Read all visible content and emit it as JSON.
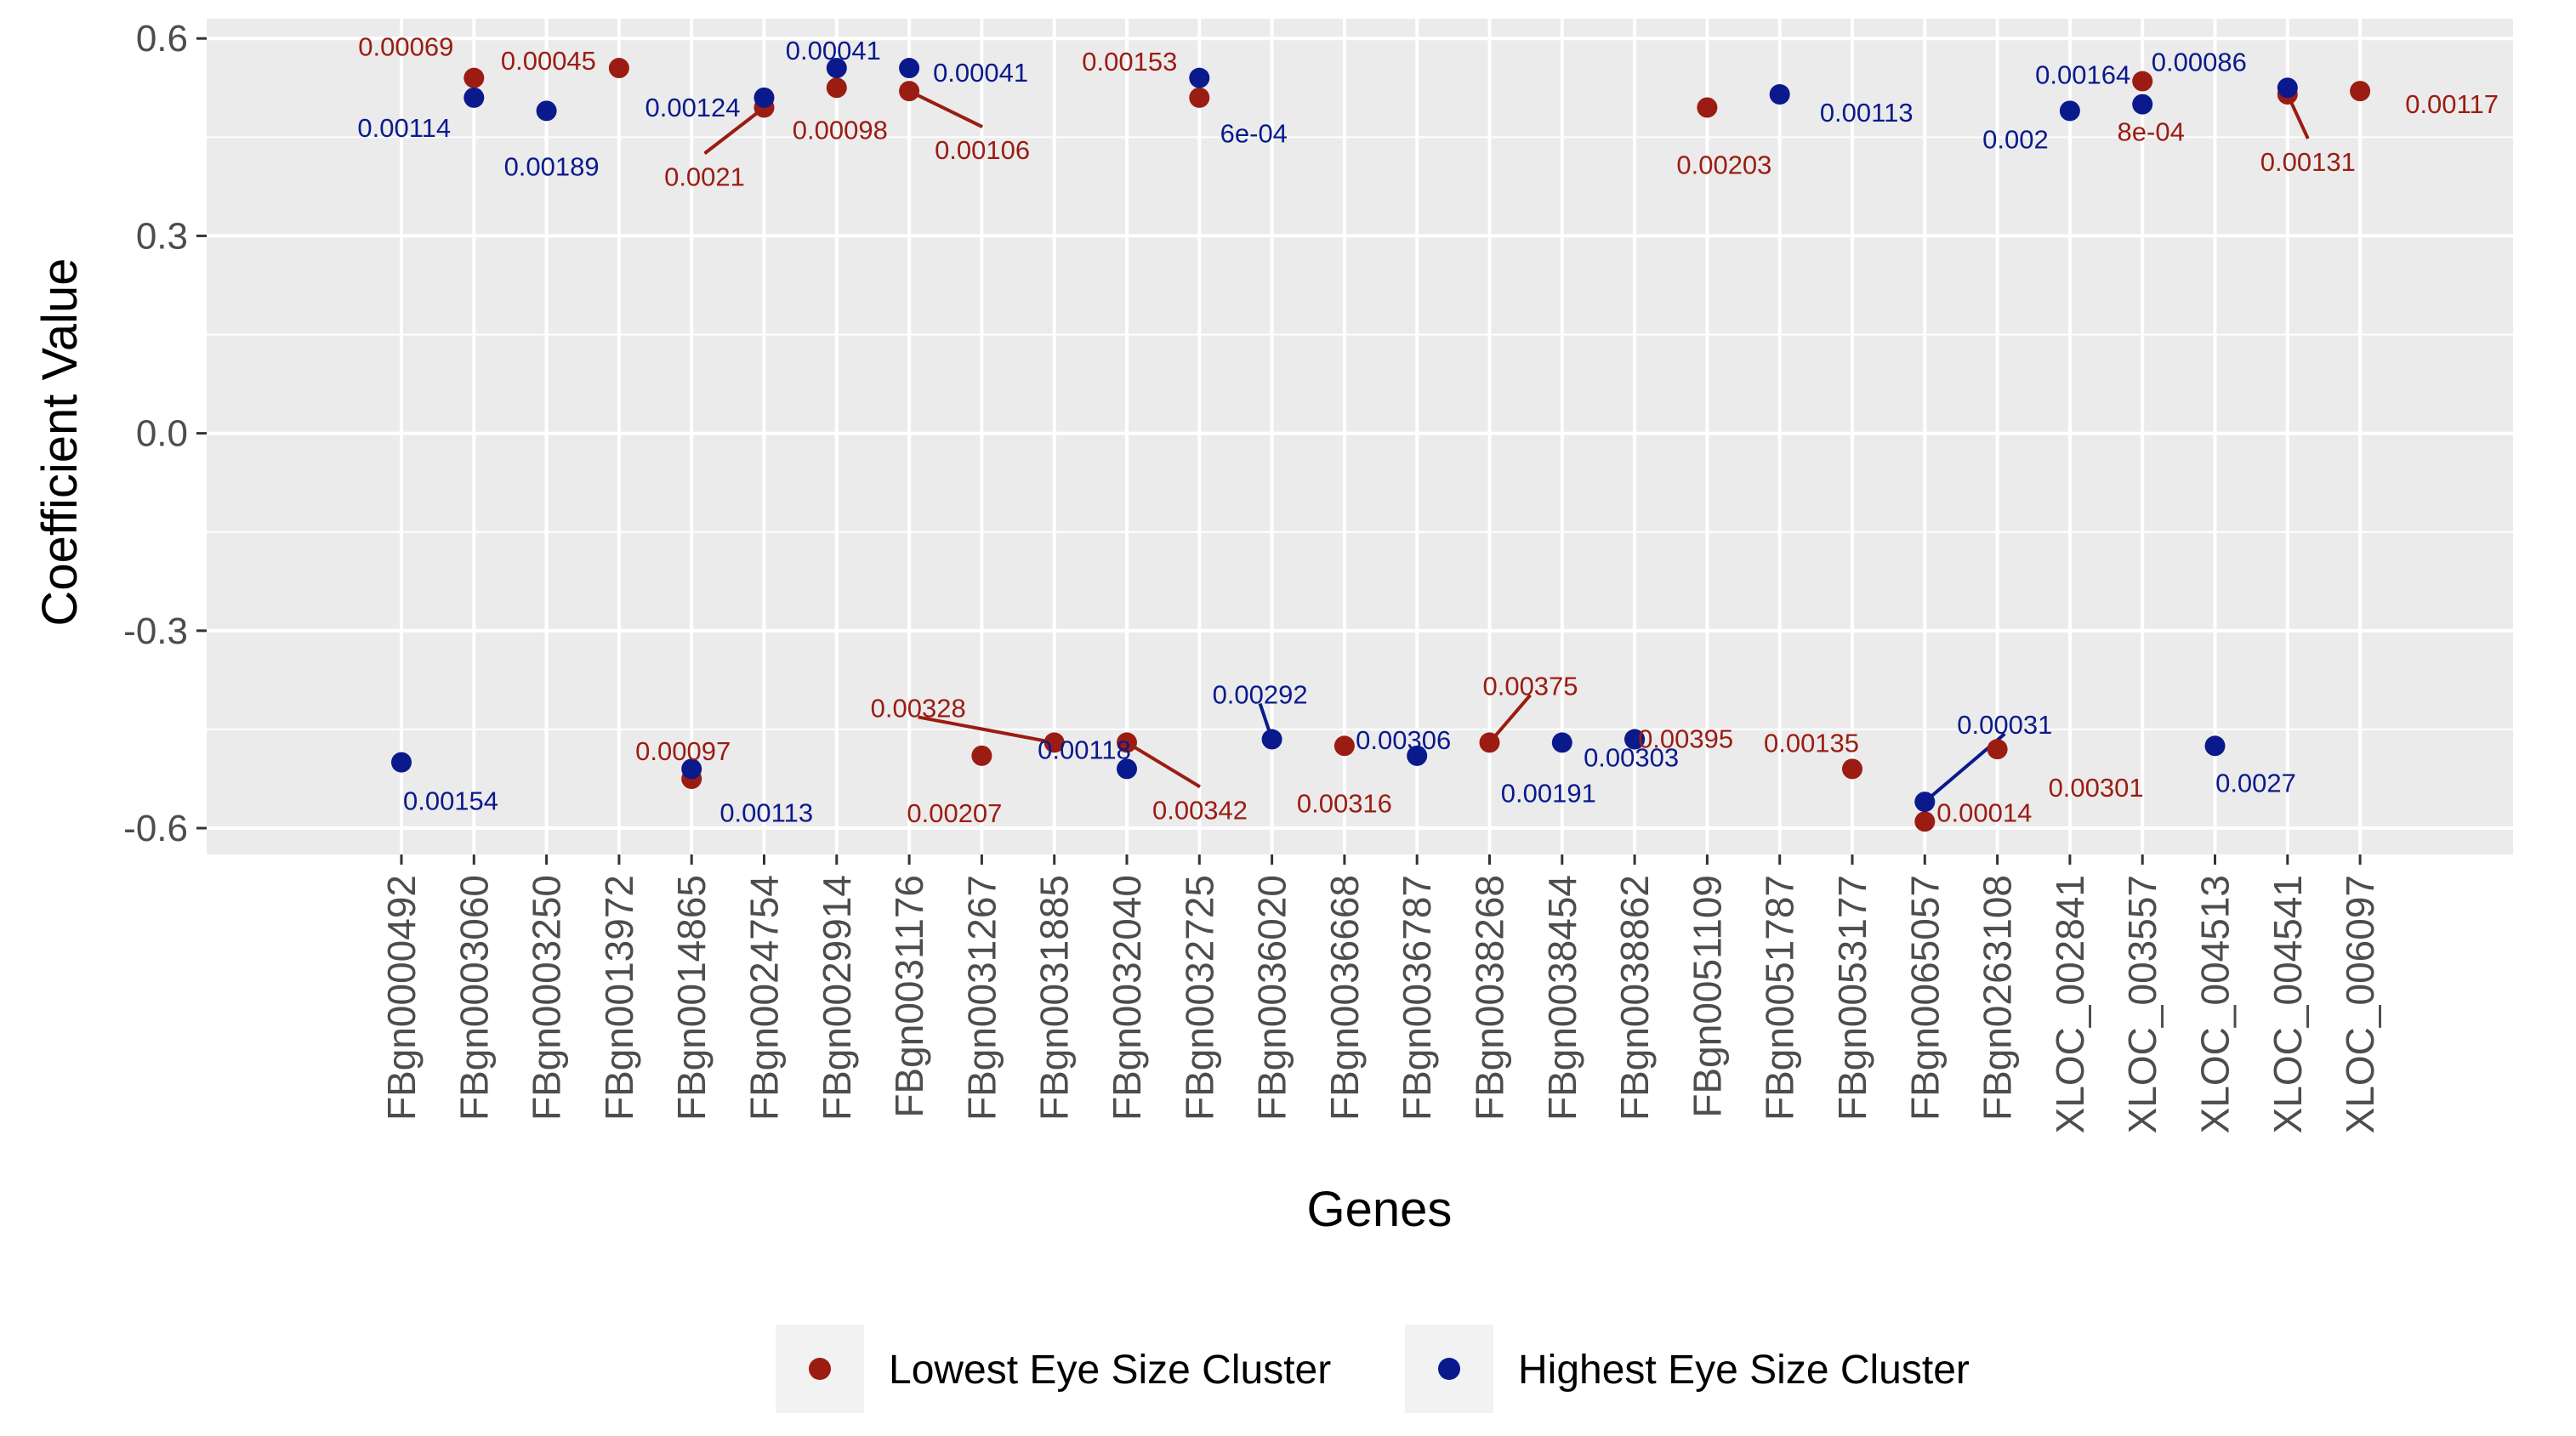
{
  "chart_data": {
    "type": "scatter",
    "title": "",
    "xlabel": "Genes",
    "ylabel": "Coefficient Value",
    "ylim": [
      -0.64,
      0.63
    ],
    "y_ticks": [
      "0.6",
      "0.3",
      "0.0",
      "-0.3",
      "-0.6"
    ],
    "y_tick_values": [
      0.6,
      0.3,
      0.0,
      -0.3,
      -0.6
    ],
    "grid": true,
    "legend_position": "bottom",
    "colors": {
      "lowest": "#9b1c12",
      "highest": "#0a1a8c",
      "panel": "#ebebeb",
      "grid": "#ffffff"
    },
    "categories": [
      "FBgn0000492",
      "FBgn0003060",
      "FBgn0003250",
      "FBgn0013972",
      "FBgn0014865",
      "FBgn0024754",
      "FBgn0029914",
      "FBgn0031176",
      "FBgn0031267",
      "FBgn0031885",
      "FBgn0032040",
      "FBgn0032725",
      "FBgn0036020",
      "FBgn0036668",
      "FBgn0036787",
      "FBgn0038268",
      "FBgn0038454",
      "FBgn0038862",
      "FBgn0051109",
      "FBgn0051787",
      "FBgn0053177",
      "FBgn0065057",
      "FBgn0263108",
      "XLOC_002841",
      "XLOC_003557",
      "XLOC_004513",
      "XLOC_004541",
      "XLOC_006097"
    ],
    "series": [
      {
        "name": "Lowest Eye Size Cluster",
        "color_key": "lowest",
        "points": [
          {
            "category": "FBgn0003060",
            "value": 0.54,
            "label": "0.00069"
          },
          {
            "category": "FBgn0013972",
            "value": 0.555,
            "label": "0.00045"
          },
          {
            "category": "FBgn0014865",
            "value": -0.525,
            "label": "0.00097"
          },
          {
            "category": "FBgn0024754",
            "value": 0.495,
            "label": "0.0021"
          },
          {
            "category": "FBgn0029914",
            "value": 0.525,
            "label": "0.00098"
          },
          {
            "category": "FBgn0031176",
            "value": 0.52,
            "label": "0.00106"
          },
          {
            "category": "FBgn0031267",
            "value": -0.49,
            "label": "0.00207"
          },
          {
            "category": "FBgn0031885",
            "value": -0.47,
            "label": "0.00328"
          },
          {
            "category": "FBgn0032040",
            "value": -0.47,
            "label": "0.00342"
          },
          {
            "category": "FBgn0032725",
            "value": 0.51,
            "label": "0.00153"
          },
          {
            "category": "FBgn0036668",
            "value": -0.475,
            "label": "0.00316"
          },
          {
            "category": "FBgn0038268",
            "value": -0.47,
            "label": "0.00375"
          },
          {
            "category": "FBgn0038862",
            "value": -0.465,
            "label": "0.00395"
          },
          {
            "category": "FBgn0051109",
            "value": 0.495,
            "label": "0.00203"
          },
          {
            "category": "FBgn0053177",
            "value": -0.51,
            "label": "0.00135"
          },
          {
            "category": "FBgn0065057",
            "value": -0.59,
            "label": "0.00014"
          },
          {
            "category": "FBgn0263108",
            "value": -0.48,
            "label": "0.00301"
          },
          {
            "category": "XLOC_003557",
            "value": 0.535,
            "label": "8e-04"
          },
          {
            "category": "XLOC_004541",
            "value": 0.515,
            "label": "0.00131"
          },
          {
            "category": "XLOC_006097",
            "value": 0.52,
            "label": "0.00117"
          }
        ]
      },
      {
        "name": "Highest Eye Size Cluster",
        "color_key": "highest",
        "points": [
          {
            "category": "FBgn0000492",
            "value": -0.5,
            "label": "0.00154"
          },
          {
            "category": "FBgn0003060",
            "value": 0.51,
            "label": "0.00114"
          },
          {
            "category": "FBgn0003250",
            "value": 0.49,
            "label": "0.00189"
          },
          {
            "category": "FBgn0014865",
            "value": -0.51,
            "label": "0.00113"
          },
          {
            "category": "FBgn0024754",
            "value": 0.51,
            "label": "0.00124"
          },
          {
            "category": "FBgn0029914",
            "value": 0.555,
            "label": "0.00041"
          },
          {
            "category": "FBgn0031176",
            "value": 0.555,
            "label": "0.00041"
          },
          {
            "category": "FBgn0032040",
            "value": -0.51,
            "label": "0.00118"
          },
          {
            "category": "FBgn0032725",
            "value": 0.54,
            "label": "6e-04"
          },
          {
            "category": "FBgn0036020",
            "value": -0.465,
            "label": "0.00292"
          },
          {
            "category": "FBgn0036787",
            "value": -0.49,
            "label": "0.00306"
          },
          {
            "category": "FBgn0038454",
            "value": -0.47,
            "label": "0.00191"
          },
          {
            "category": "FBgn0038862",
            "value": -0.465,
            "label": "0.00303"
          },
          {
            "category": "FBgn0051787",
            "value": 0.515,
            "label": "0.00113"
          },
          {
            "category": "FBgn0065057",
            "value": -0.56,
            "label": "0.00031"
          },
          {
            "category": "XLOC_002841",
            "value": 0.49,
            "label": "0.002"
          },
          {
            "category": "XLOC_003557",
            "value": 0.5,
            "label": "0.00164"
          },
          {
            "category": "XLOC_004513",
            "value": -0.475,
            "label": "0.0027"
          },
          {
            "category": "XLOC_004541",
            "value": 0.525,
            "label": "0.00086"
          }
        ]
      }
    ]
  },
  "legend": {
    "items": [
      {
        "label": "Lowest Eye Size Cluster",
        "color_key": "lowest"
      },
      {
        "label": "Highest Eye Size Cluster",
        "color_key": "highest"
      }
    ]
  }
}
